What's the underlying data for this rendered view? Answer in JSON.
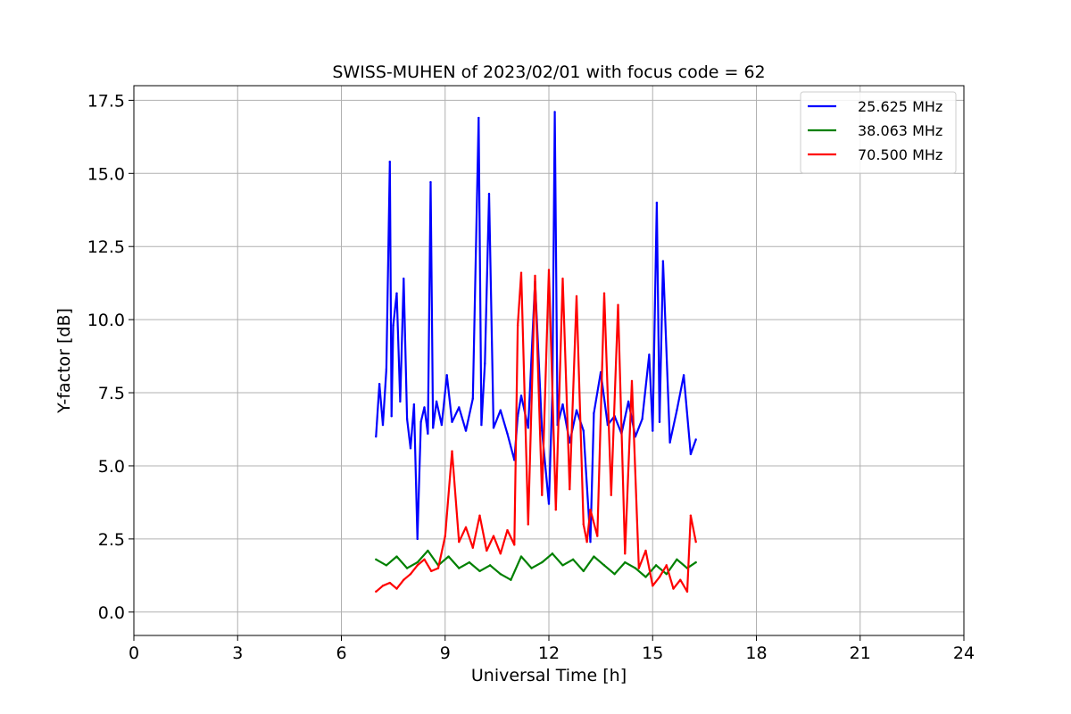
{
  "chart_data": {
    "type": "line",
    "title": "SWISS-MUHEN of 2023/02/01 with focus code = 62",
    "xlabel": "Universal Time [h]",
    "ylabel": "Y-factor [dB]",
    "xlim": [
      0,
      24
    ],
    "ylim": [
      -0.8,
      18.0
    ],
    "xticks": [
      0,
      3,
      6,
      9,
      12,
      15,
      18,
      21,
      24
    ],
    "xtick_labels": [
      "0",
      "3",
      "6",
      "9",
      "12",
      "15",
      "18",
      "21",
      "24"
    ],
    "yticks": [
      0.0,
      2.5,
      5.0,
      7.5,
      10.0,
      12.5,
      15.0,
      17.5
    ],
    "ytick_labels": [
      "0.0",
      "2.5",
      "5.0",
      "7.5",
      "10.0",
      "12.5",
      "15.0",
      "17.5"
    ],
    "grid": true,
    "legend_position": "top-right",
    "series": [
      {
        "name": "25.625 MHz",
        "color": "#0000ff",
        "x": [
          7.0,
          7.1,
          7.2,
          7.3,
          7.4,
          7.45,
          7.5,
          7.6,
          7.7,
          7.8,
          7.9,
          8.0,
          8.1,
          8.2,
          8.3,
          8.4,
          8.5,
          8.58,
          8.65,
          8.75,
          8.9,
          9.05,
          9.2,
          9.4,
          9.6,
          9.8,
          9.97,
          10.05,
          10.15,
          10.27,
          10.4,
          10.6,
          10.8,
          11.0,
          11.1,
          11.2,
          11.4,
          11.6,
          11.8,
          12.0,
          12.1,
          12.17,
          12.25,
          12.4,
          12.6,
          12.8,
          13.0,
          13.2,
          13.3,
          13.5,
          13.7,
          13.9,
          14.1,
          14.3,
          14.5,
          14.7,
          14.9,
          15.0,
          15.12,
          15.2,
          15.3,
          15.5,
          15.7,
          15.9,
          16.1,
          16.25
        ],
        "y": [
          6.0,
          7.8,
          6.4,
          8.3,
          15.4,
          6.7,
          9.8,
          10.9,
          7.2,
          11.4,
          6.6,
          5.6,
          7.1,
          2.5,
          6.5,
          7.0,
          6.1,
          14.7,
          6.3,
          7.2,
          6.4,
          8.1,
          6.5,
          7.0,
          6.2,
          7.3,
          16.9,
          6.4,
          8.5,
          14.3,
          6.3,
          6.9,
          6.1,
          5.2,
          6.7,
          7.4,
          6.3,
          11.3,
          6.2,
          3.7,
          7.5,
          17.1,
          6.4,
          7.1,
          5.8,
          6.9,
          6.2,
          2.4,
          6.8,
          8.2,
          6.4,
          6.7,
          6.1,
          7.2,
          6.0,
          6.6,
          8.8,
          6.2,
          14.0,
          6.5,
          12.0,
          5.8,
          6.9,
          8.1,
          5.4,
          5.9
        ]
      },
      {
        "name": "38.063 MHz",
        "color": "#008000",
        "x": [
          7.0,
          7.3,
          7.6,
          7.9,
          8.2,
          8.5,
          8.8,
          9.1,
          9.4,
          9.7,
          10.0,
          10.3,
          10.6,
          10.9,
          11.2,
          11.5,
          11.8,
          12.1,
          12.4,
          12.7,
          13.0,
          13.3,
          13.6,
          13.9,
          14.2,
          14.5,
          14.8,
          15.1,
          15.4,
          15.7,
          16.0,
          16.25
        ],
        "y": [
          1.8,
          1.6,
          1.9,
          1.5,
          1.7,
          2.1,
          1.6,
          1.9,
          1.5,
          1.7,
          1.4,
          1.6,
          1.3,
          1.1,
          1.9,
          1.5,
          1.7,
          2.0,
          1.6,
          1.8,
          1.4,
          1.9,
          1.6,
          1.3,
          1.7,
          1.5,
          1.2,
          1.6,
          1.3,
          1.8,
          1.5,
          1.7
        ]
      },
      {
        "name": "70.500 MHz",
        "color": "#ff0000",
        "x": [
          7.0,
          7.2,
          7.4,
          7.6,
          7.8,
          8.0,
          8.2,
          8.4,
          8.6,
          8.8,
          9.0,
          9.2,
          9.4,
          9.6,
          9.8,
          10.0,
          10.2,
          10.4,
          10.6,
          10.8,
          11.0,
          11.1,
          11.2,
          11.4,
          11.6,
          11.8,
          12.0,
          12.2,
          12.4,
          12.6,
          12.8,
          13.0,
          13.1,
          13.2,
          13.4,
          13.6,
          13.8,
          14.0,
          14.2,
          14.4,
          14.6,
          14.8,
          15.0,
          15.2,
          15.4,
          15.6,
          15.8,
          16.0,
          16.1,
          16.25
        ],
        "y": [
          0.7,
          0.9,
          1.0,
          0.8,
          1.1,
          1.3,
          1.6,
          1.8,
          1.4,
          1.5,
          2.6,
          5.5,
          2.4,
          2.9,
          2.2,
          3.3,
          2.1,
          2.6,
          2.0,
          2.8,
          2.3,
          9.8,
          11.6,
          3.0,
          11.5,
          4.0,
          11.7,
          3.5,
          11.4,
          4.2,
          10.8,
          3.0,
          2.4,
          3.5,
          2.6,
          10.9,
          4.0,
          10.5,
          2.0,
          7.9,
          1.5,
          2.1,
          0.9,
          1.2,
          1.6,
          0.8,
          1.1,
          0.7,
          3.3,
          2.4
        ]
      }
    ]
  }
}
